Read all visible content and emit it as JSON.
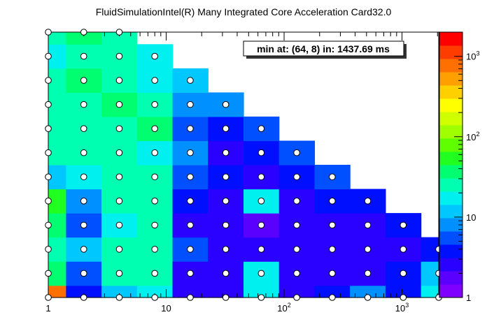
{
  "chart_data": {
    "type": "heatmap",
    "title": "FluidSimulationIntel(R) Many Integrated Core Acceleration Card32.0",
    "annotation": "min at: (64, 8) in: 1437.69 ms",
    "x_scale": "log2",
    "y_scale": "log2",
    "xlim": [
      1,
      2048
    ],
    "ylim": [
      1,
      2048
    ],
    "x_tick_labels": [
      {
        "value": 1,
        "base": "1",
        "exp": ""
      },
      {
        "value": 10,
        "base": "10",
        "exp": ""
      },
      {
        "value": 100,
        "base": "10",
        "exp": "2"
      },
      {
        "value": 1000,
        "base": "10",
        "exp": "3"
      }
    ],
    "colorbar": {
      "scale": "log",
      "range": [
        1,
        2000
      ],
      "tick_labels": [
        {
          "value": 1,
          "base": "1",
          "exp": ""
        },
        {
          "value": 10,
          "base": "10",
          "exp": ""
        },
        {
          "value": 100,
          "base": "10",
          "exp": "2"
        },
        {
          "value": 1000,
          "base": "10",
          "exp": "3"
        }
      ],
      "colors": [
        "#7f00ff",
        "#5a00ff",
        "#2a00ff",
        "#0010ff",
        "#0050ff",
        "#0090ff",
        "#00c8ff",
        "#00f0f0",
        "#00ffb0",
        "#00ff70",
        "#20ff20",
        "#60ff00",
        "#a0ff00",
        "#d0ff00",
        "#ffff00",
        "#ffd000",
        "#ffa000",
        "#ff7000",
        "#ff3c00",
        "#ff0000"
      ]
    },
    "x_values": [
      1,
      2,
      4,
      8,
      16,
      32,
      64,
      128,
      256,
      512,
      1024,
      2048
    ],
    "y_values": [
      1,
      2,
      4,
      8,
      16,
      32,
      64,
      128,
      256,
      512,
      1024,
      2048
    ],
    "z_grid": [
      [
        900,
        3.5,
        12,
        20,
        3,
        2.5,
        20,
        3,
        3.5,
        8,
        4,
        20
      ],
      [
        40,
        5,
        22,
        30,
        2.5,
        2.5,
        20,
        2.5,
        2.5,
        3,
        3.5,
        12
      ],
      [
        25,
        12,
        25,
        25,
        5,
        2.5,
        3,
        2.5,
        2.5,
        3,
        3,
        4
      ],
      [
        40,
        6,
        20,
        30,
        3,
        2.5,
        1.5,
        2.5,
        3,
        3,
        4,
        null
      ],
      [
        45,
        8,
        30,
        25,
        4,
        3,
        20,
        3,
        3.5,
        4.5,
        null,
        null
      ],
      [
        12,
        20,
        25,
        25,
        6,
        4,
        3,
        4,
        5,
        null,
        null,
        null
      ],
      [
        25,
        30,
        30,
        20,
        8,
        3,
        3.5,
        5,
        null,
        null,
        null,
        null
      ],
      [
        30,
        25,
        30,
        40,
        5,
        4.5,
        5,
        null,
        null,
        null,
        null,
        null
      ],
      [
        25,
        30,
        35,
        25,
        8,
        8,
        null,
        null,
        null,
        null,
        null,
        null
      ],
      [
        30,
        35,
        30,
        20,
        10,
        null,
        null,
        null,
        null,
        null,
        null,
        null
      ],
      [
        20,
        25,
        30,
        15,
        null,
        null,
        null,
        null,
        null,
        null,
        null,
        null
      ],
      [
        25,
        35,
        30,
        null,
        null,
        null,
        null,
        null,
        null,
        null,
        null,
        null
      ]
    ]
  }
}
